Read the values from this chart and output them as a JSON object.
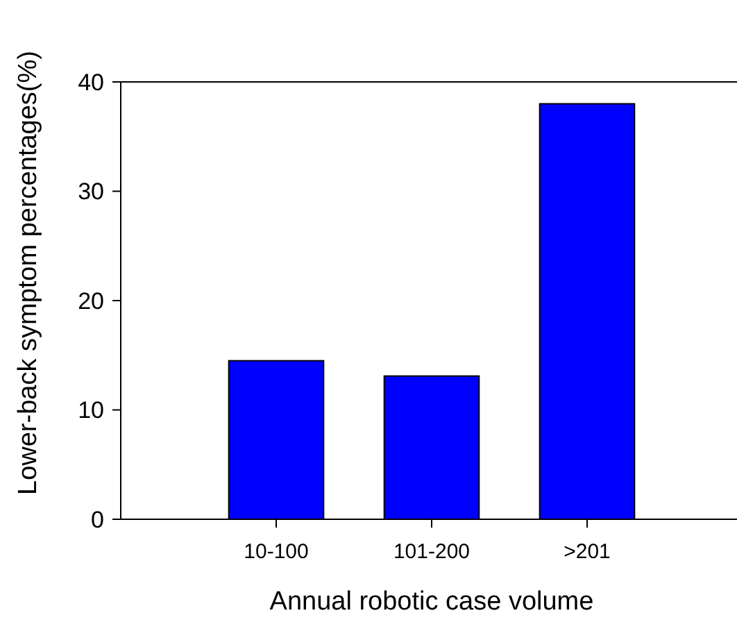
{
  "chart_data": {
    "type": "bar",
    "xlabel": "Annual robotic case volume",
    "ylabel": "Lower-back symptom percentages(%)",
    "categories": [
      "10-100",
      "101-200",
      ">201"
    ],
    "values": [
      14.5,
      13.1,
      38
    ],
    "color": "#0000ff",
    "ylim": [
      0,
      40
    ],
    "yticks": [
      0,
      10,
      20,
      30,
      40
    ],
    "grid": false
  }
}
